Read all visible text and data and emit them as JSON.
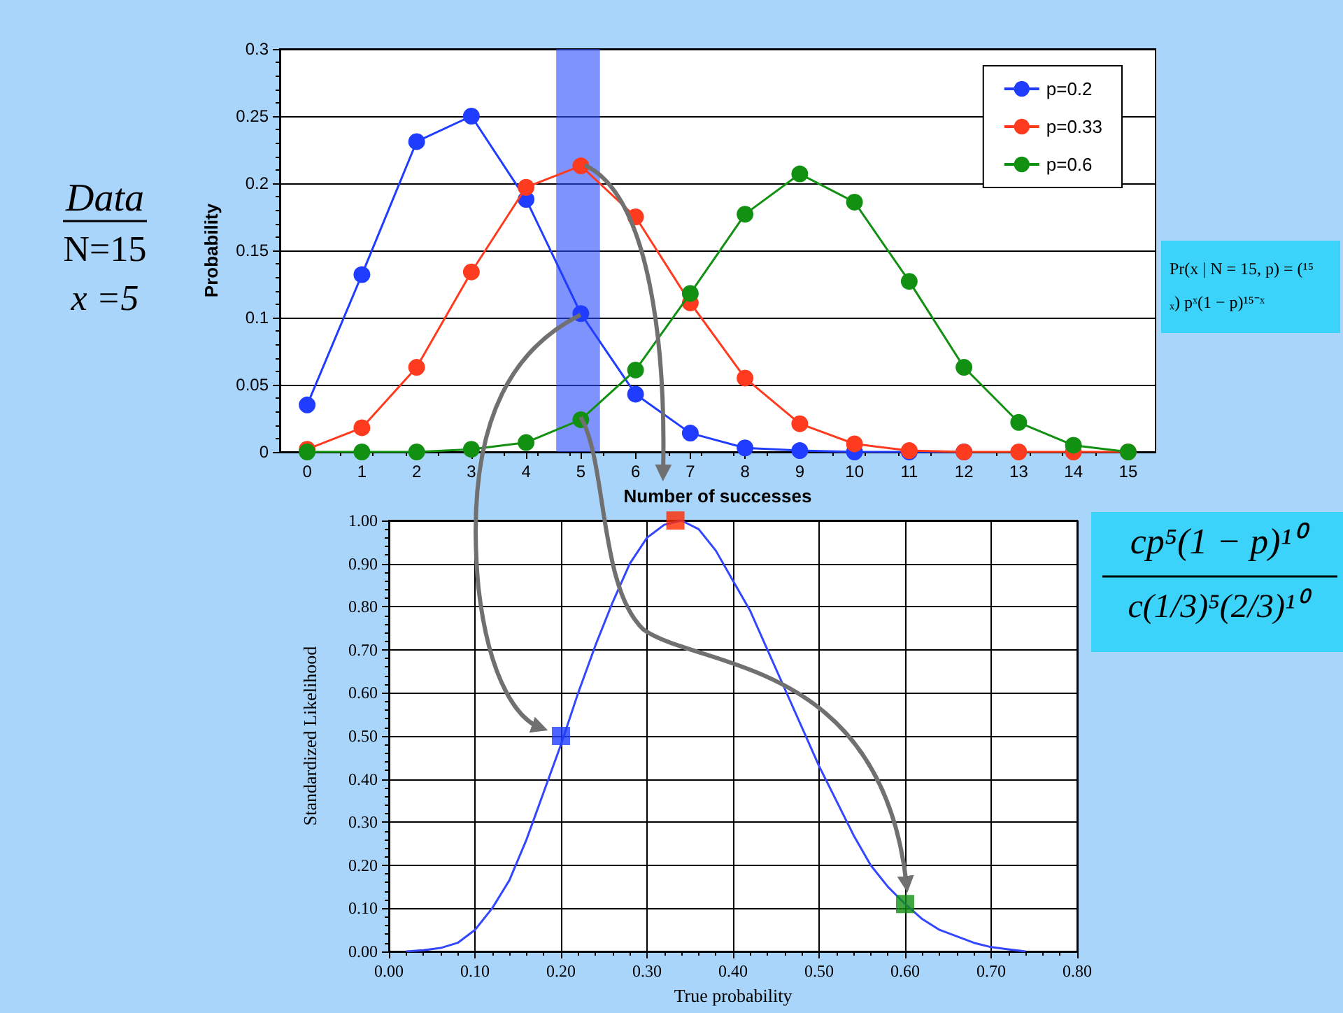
{
  "chart_data": [
    {
      "type": "line",
      "xlabel": "Number of successes",
      "ylabel": "Probability",
      "x": [
        0,
        1,
        2,
        3,
        4,
        5,
        6,
        7,
        8,
        9,
        10,
        11,
        12,
        13,
        14,
        15
      ],
      "series": [
        {
          "name": "p=0.2",
          "color": "#1f3cff",
          "values": [
            0.035,
            0.132,
            0.231,
            0.25,
            0.188,
            0.103,
            0.043,
            0.014,
            0.003,
            0.001,
            0,
            0,
            0,
            null,
            null,
            null
          ]
        },
        {
          "name": "p=0.33",
          "color": "#ff3b1f",
          "values": [
            0.002,
            0.018,
            0.063,
            0.134,
            0.197,
            0.213,
            0.175,
            0.111,
            0.055,
            0.021,
            0.006,
            0.001,
            0,
            0,
            0,
            0
          ]
        },
        {
          "name": "p=0.6",
          "color": "#129012",
          "values": [
            0,
            0,
            0,
            0.002,
            0.007,
            0.024,
            0.061,
            0.118,
            0.177,
            0.207,
            0.186,
            0.127,
            0.063,
            0.022,
            0.005,
            0
          ]
        }
      ],
      "xlim": [
        -0.5,
        15.5
      ],
      "xticks": [
        0,
        1,
        2,
        3,
        4,
        5,
        6,
        7,
        8,
        9,
        10,
        11,
        12,
        13,
        14,
        15
      ],
      "ylim": [
        0,
        0.3
      ],
      "yticks": [
        0,
        0.05,
        0.1,
        0.15,
        0.2,
        0.25,
        0.3
      ],
      "grid": "y",
      "legend": "top right",
      "marker": "circle",
      "bands": [
        {
          "axis": "x",
          "from": 4.55,
          "to": 5.35,
          "color": "#2a4bff"
        }
      ],
      "annotations": [
        "Data",
        "N=15",
        "x =5",
        "Pr(x | N = 15, p) = (¹⁵ₓ) pˣ(1 − p)¹⁵⁻ˣ"
      ]
    },
    {
      "type": "line",
      "xlabel": "True probability",
      "ylabel": "Standardized Likelihood",
      "series": [
        {
          "color": "#3347ff",
          "marker": "none",
          "x": [
            0.02,
            0.04,
            0.06,
            0.08,
            0.1,
            0.12,
            0.14,
            0.16,
            0.18,
            0.2,
            0.22,
            0.24,
            0.26,
            0.28,
            0.3,
            0.32,
            0.34,
            0.36,
            0.38,
            0.4,
            0.42,
            0.44,
            0.46,
            0.48,
            0.5,
            0.52,
            0.54,
            0.56,
            0.58,
            0.6,
            0.62,
            0.64,
            0.66,
            0.68,
            0.7,
            0.72,
            0.74
          ],
          "values": [
            0,
            0.003,
            0.008,
            0.02,
            0.05,
            0.1,
            0.165,
            0.26,
            0.37,
            0.48,
            0.6,
            0.71,
            0.81,
            0.9,
            0.96,
            0.99,
            1.0,
            0.98,
            0.93,
            0.86,
            0.79,
            0.7,
            0.61,
            0.52,
            0.43,
            0.35,
            0.27,
            0.2,
            0.15,
            0.11,
            0.075,
            0.05,
            0.035,
            0.02,
            0.01,
            0.005,
            0
          ]
        },
        {
          "type": "scatter",
          "marker": "square",
          "x": [
            0.2,
            0.333,
            0.6
          ],
          "values": [
            0.5,
            1.0,
            0.11
          ],
          "colors": [
            "#1f3cff",
            "#ff2a00",
            "#129012"
          ]
        }
      ],
      "xlim": [
        0,
        0.8
      ],
      "xticks": [
        {
          "value": 0,
          "label": "0.00"
        },
        {
          "value": 0.1,
          "label": "0.10"
        },
        {
          "value": 0.2,
          "label": "0.20"
        },
        {
          "value": 0.3,
          "label": "0.30"
        },
        {
          "value": 0.4,
          "label": "0.40"
        },
        {
          "value": 0.5,
          "label": "0.50"
        },
        {
          "value": 0.6,
          "label": "0.60"
        },
        {
          "value": 0.7,
          "label": "0.70"
        },
        {
          "value": 0.8,
          "label": "0.80"
        }
      ],
      "ylim": [
        0,
        1
      ],
      "yticks": [
        {
          "value": 0,
          "label": "0.00"
        },
        {
          "value": 0.1,
          "label": "0.10"
        },
        {
          "value": 0.2,
          "label": "0.20"
        },
        {
          "value": 0.3,
          "label": "0.30"
        },
        {
          "value": 0.4,
          "label": "0.40"
        },
        {
          "value": 0.5,
          "label": "0.50"
        },
        {
          "value": 0.6,
          "label": "0.60"
        },
        {
          "value": 0.7,
          "label": "0.70"
        },
        {
          "value": 0.8,
          "label": "0.80"
        },
        {
          "value": 0.9,
          "label": "0.90"
        },
        {
          "value": 1,
          "label": "1.00"
        }
      ],
      "grid": true,
      "annotations": [
        "cp⁵(1 − p)¹⁰",
        "c(1/3)⁵(2/3)¹⁰"
      ]
    }
  ]
}
